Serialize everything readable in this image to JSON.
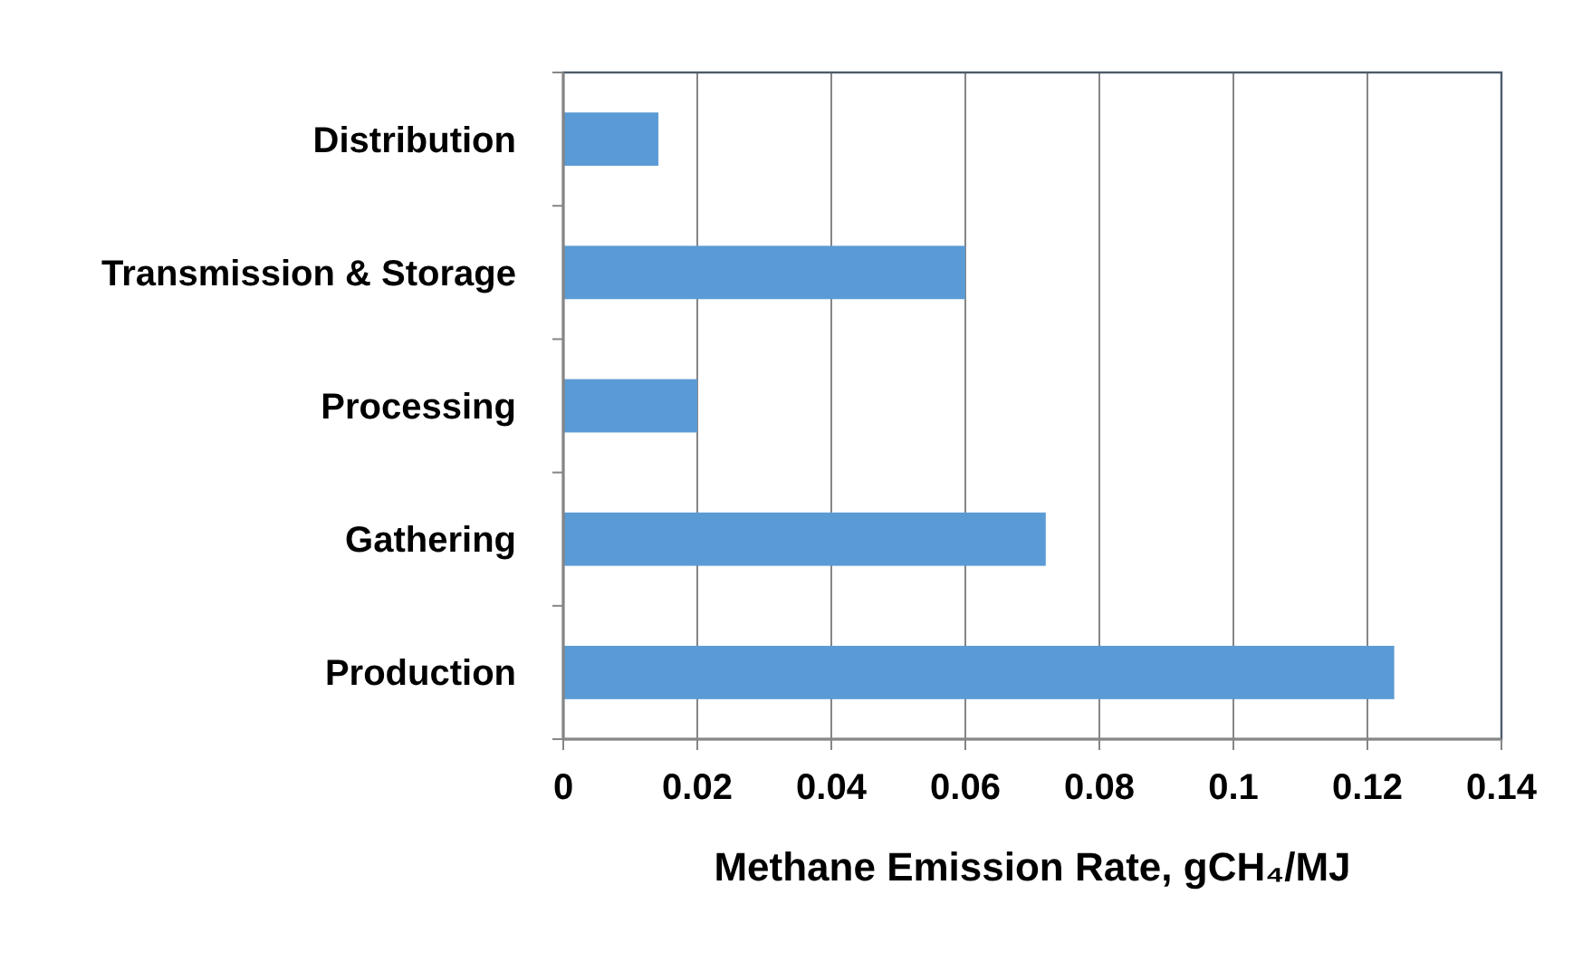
{
  "chart_data": {
    "type": "bar",
    "orientation": "horizontal",
    "xlabel": "Methane Emission Rate, gCH₄/MJ",
    "categories": [
      "Distribution",
      "Transmission & Storage",
      "Processing",
      "Gathering",
      "Production"
    ],
    "values": [
      0.0142,
      0.06,
      0.02,
      0.072,
      0.124
    ],
    "color": "#5b9bd5",
    "xlim": [
      0,
      0.14
    ],
    "xticks": [
      0,
      0.02,
      0.04,
      0.06,
      0.08,
      0.1,
      0.12,
      0.14
    ],
    "grid": "x"
  }
}
